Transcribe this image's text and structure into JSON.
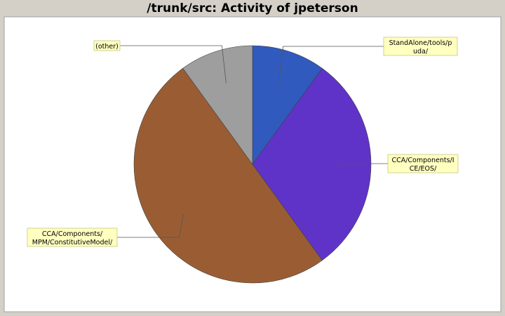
{
  "chart_data": {
    "type": "pie",
    "title": "/trunk/src: Activity of jpeterson",
    "slices": [
      {
        "label_lines": [
          "StandAlone/tools/p",
          "uda/"
        ],
        "value": 10,
        "color": "#315abe"
      },
      {
        "label_lines": [
          "CCA/Components/I",
          "CE/EOS/"
        ],
        "value": 30,
        "color": "#5f33c7"
      },
      {
        "label_lines": [
          "CCA/Components/",
          "MPM/ConstitutiveModel/"
        ],
        "value": 50,
        "color": "#9a5d33"
      },
      {
        "label_lines": [
          "(other)"
        ],
        "value": 10,
        "color": "#9e9e9e"
      }
    ],
    "colors": {
      "page_background": "#d4d0c8",
      "plot_background": "#ffffff",
      "label_fill": "#ffffc0",
      "label_border": "#c8c880",
      "leader_line": "#555555"
    }
  }
}
